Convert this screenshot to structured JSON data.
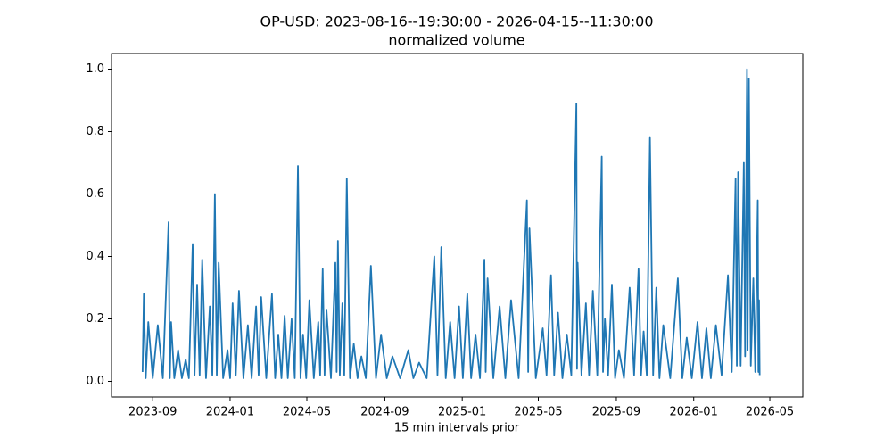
{
  "chart_data": {
    "type": "line",
    "title": "OP-USD: 2023-08-16--19:30:00 - 2026-04-15--11:30:00",
    "subtitle": "normalized volume",
    "x_label": "15 min intervals prior",
    "color": "#1f77b4",
    "grid": false,
    "xlim": [
      "2023-06-28",
      "2026-06-22"
    ],
    "xticks": [
      {
        "value": "2023-09-01",
        "label": "2023-09"
      },
      {
        "value": "2024-01-01",
        "label": "2024-01"
      },
      {
        "value": "2024-05-01",
        "label": "2024-05"
      },
      {
        "value": "2024-09-01",
        "label": "2024-09"
      },
      {
        "value": "2025-01-01",
        "label": "2025-01"
      },
      {
        "value": "2025-05-01",
        "label": "2025-05"
      },
      {
        "value": "2025-09-01",
        "label": "2025-09"
      },
      {
        "value": "2026-01-01",
        "label": "2026-01"
      },
      {
        "value": "2026-05-01",
        "label": "2026-05"
      }
    ],
    "ylim": [
      -0.05,
      1.05
    ],
    "yticks": [
      {
        "value": 0,
        "label": "0.0"
      },
      {
        "value": 0.2,
        "label": "0.2"
      },
      {
        "value": 0.4,
        "label": "0.4"
      },
      {
        "value": 0.6,
        "label": "0.6"
      },
      {
        "value": 0.8,
        "label": "0.8"
      },
      {
        "value": 1,
        "label": "1.0"
      }
    ],
    "x": [
      "2023-08-16",
      "2023-08-18",
      "2023-08-21",
      "2023-08-25",
      "2023-09-01",
      "2023-09-09",
      "2023-09-17",
      "2023-09-26",
      "2023-09-28",
      "2023-09-30",
      "2023-10-05",
      "2023-10-11",
      "2023-10-17",
      "2023-10-23",
      "2023-10-28",
      "2023-11-03",
      "2023-11-06",
      "2023-11-10",
      "2023-11-14",
      "2023-11-18",
      "2023-11-24",
      "2023-11-30",
      "2023-12-04",
      "2023-12-08",
      "2023-12-11",
      "2023-12-14",
      "2023-12-21",
      "2023-12-28",
      "2024-01-01",
      "2024-01-05",
      "2024-01-10",
      "2024-01-15",
      "2024-01-22",
      "2024-01-29",
      "2024-02-04",
      "2024-02-11",
      "2024-02-15",
      "2024-02-19",
      "2024-02-27",
      "2024-03-07",
      "2024-03-12",
      "2024-03-17",
      "2024-03-22",
      "2024-03-27",
      "2024-04-01",
      "2024-04-07",
      "2024-04-12",
      "2024-04-17",
      "2024-04-21",
      "2024-04-25",
      "2024-04-30",
      "2024-05-05",
      "2024-05-12",
      "2024-05-19",
      "2024-05-22",
      "2024-05-26",
      "2024-05-29",
      "2024-06-01",
      "2024-06-08",
      "2024-06-15",
      "2024-06-17",
      "2024-06-19",
      "2024-06-22",
      "2024-06-26",
      "2024-06-29",
      "2024-07-03",
      "2024-07-08",
      "2024-07-14",
      "2024-07-20",
      "2024-07-26",
      "2024-08-02",
      "2024-08-10",
      "2024-08-18",
      "2024-08-26",
      "2024-09-04",
      "2024-09-13",
      "2024-09-25",
      "2024-10-08",
      "2024-10-16",
      "2024-10-25",
      "2024-11-06",
      "2024-11-18",
      "2024-11-23",
      "2024-11-29",
      "2024-12-06",
      "2024-12-13",
      "2024-12-20",
      "2024-12-27",
      "2025-01-02",
      "2025-01-09",
      "2025-01-15",
      "2025-01-22",
      "2025-01-29",
      "2025-02-05",
      "2025-02-07",
      "2025-02-10",
      "2025-02-19",
      "2025-03-01",
      "2025-03-10",
      "2025-03-19",
      "2025-03-31",
      "2025-04-13",
      "2025-04-15",
      "2025-04-17",
      "2025-04-27",
      "2025-05-08",
      "2025-05-14",
      "2025-05-21",
      "2025-05-26",
      "2025-06-01",
      "2025-06-08",
      "2025-06-15",
      "2025-06-22",
      "2025-06-30",
      "2025-07-01",
      "2025-07-02",
      "2025-07-08",
      "2025-07-15",
      "2025-07-20",
      "2025-07-26",
      "2025-08-02",
      "2025-08-09",
      "2025-08-11",
      "2025-08-14",
      "2025-08-19",
      "2025-08-25",
      "2025-08-30",
      "2025-09-05",
      "2025-09-13",
      "2025-09-22",
      "2025-09-29",
      "2025-10-06",
      "2025-10-10",
      "2025-10-14",
      "2025-10-19",
      "2025-10-24",
      "2025-10-29",
      "2025-11-03",
      "2025-11-08",
      "2025-11-14",
      "2025-11-25",
      "2025-12-07",
      "2025-12-14",
      "2025-12-21",
      "2025-12-29",
      "2026-01-07",
      "2026-01-14",
      "2026-01-21",
      "2026-01-28",
      "2026-02-05",
      "2026-02-14",
      "2026-02-24",
      "2026-03-02",
      "2026-03-08",
      "2026-03-10",
      "2026-03-12",
      "2026-03-16",
      "2026-03-21",
      "2026-03-23",
      "2026-03-26",
      "2026-03-27",
      "2026-03-29",
      "2026-04-01",
      "2026-04-05",
      "2026-04-08",
      "2026-04-12",
      "2026-04-13",
      "2026-04-14",
      "2026-04-15"
    ],
    "values": [
      0.03,
      0.28,
      0.01,
      0.19,
      0.01,
      0.18,
      0.01,
      0.51,
      0.01,
      0.19,
      0.01,
      0.1,
      0.01,
      0.07,
      0.01,
      0.44,
      0.02,
      0.31,
      0.02,
      0.39,
      0.01,
      0.24,
      0.02,
      0.6,
      0.02,
      0.38,
      0.01,
      0.1,
      0.01,
      0.25,
      0.02,
      0.29,
      0.01,
      0.18,
      0.01,
      0.24,
      0.02,
      0.27,
      0.01,
      0.28,
      0.01,
      0.15,
      0.01,
      0.21,
      0.01,
      0.2,
      0.01,
      0.69,
      0.01,
      0.15,
      0.01,
      0.26,
      0.01,
      0.19,
      0.02,
      0.36,
      0.02,
      0.23,
      0.01,
      0.38,
      0.03,
      0.45,
      0.02,
      0.25,
      0.02,
      0.65,
      0.01,
      0.12,
      0.01,
      0.08,
      0.01,
      0.37,
      0.01,
      0.15,
      0.01,
      0.08,
      0.01,
      0.1,
      0.01,
      0.06,
      0.01,
      0.4,
      0.02,
      0.43,
      0.01,
      0.19,
      0.01,
      0.24,
      0.01,
      0.28,
      0.01,
      0.15,
      0.01,
      0.39,
      0.03,
      0.33,
      0.01,
      0.24,
      0.01,
      0.26,
      0.01,
      0.58,
      0.03,
      0.49,
      0.01,
      0.17,
      0.02,
      0.34,
      0.02,
      0.22,
      0.01,
      0.15,
      0.02,
      0.89,
      0.04,
      0.38,
      0.02,
      0.25,
      0.02,
      0.29,
      0.02,
      0.72,
      0.03,
      0.2,
      0.02,
      0.31,
      0.01,
      0.1,
      0.01,
      0.3,
      0.02,
      0.36,
      0.02,
      0.16,
      0.02,
      0.78,
      0.02,
      0.3,
      0.01,
      0.18,
      0.01,
      0.33,
      0.01,
      0.14,
      0.01,
      0.19,
      0.01,
      0.17,
      0.01,
      0.18,
      0.02,
      0.34,
      0.03,
      0.65,
      0.05,
      0.67,
      0.05,
      0.7,
      0.08,
      1.0,
      0.1,
      0.97,
      0.05,
      0.33,
      0.03,
      0.58,
      0.03,
      0.26,
      0.02
    ]
  }
}
